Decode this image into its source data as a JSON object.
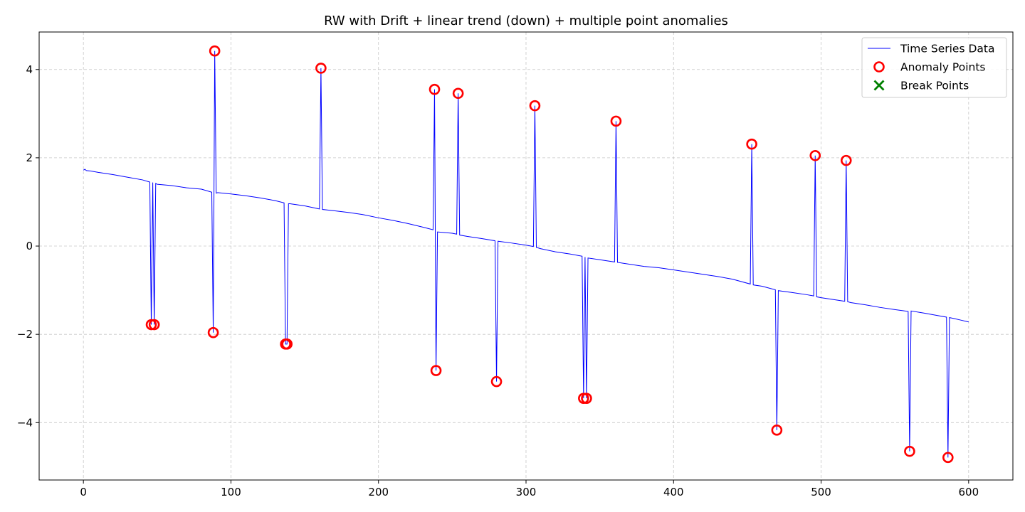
{
  "chart_data": {
    "type": "line",
    "title": "RW with Drift + linear trend (down) + multiple point anomalies",
    "xlabel": "",
    "ylabel": "",
    "xlim": [
      -30,
      630
    ],
    "ylim": [
      -5.3,
      4.85
    ],
    "xticks": [
      0,
      100,
      200,
      300,
      400,
      500,
      600
    ],
    "yticks": [
      -4,
      -2,
      0,
      2,
      4
    ],
    "grid": true,
    "legend": {
      "position": "top-right",
      "entries": [
        {
          "label": "Time Series Data",
          "marker": "line",
          "color": "#0000ff"
        },
        {
          "label": "Anomaly Points",
          "marker": "circle",
          "color": "#ff0000"
        },
        {
          "label": "Break Points",
          "marker": "x",
          "color": "#008000"
        }
      ]
    },
    "series": [
      {
        "name": "Time Series Data",
        "color": "#0000ff",
        "x": [
          0,
          1,
          2,
          5,
          10,
          20,
          30,
          40,
          45,
          46,
          47,
          48,
          49,
          50,
          60,
          70,
          80,
          87,
          88,
          89,
          90,
          91,
          100,
          110,
          120,
          130,
          136,
          137,
          138,
          139,
          140,
          150,
          160,
          161,
          162,
          170,
          180,
          190,
          200,
          210,
          220,
          230,
          237,
          238,
          239,
          240,
          250,
          253,
          254,
          255,
          260,
          270,
          279,
          280,
          281,
          290,
          300,
          305,
          306,
          307,
          310,
          320,
          330,
          338,
          339,
          340,
          341,
          342,
          350,
          360,
          361,
          362,
          370,
          380,
          390,
          400,
          410,
          420,
          430,
          440,
          452,
          453,
          454,
          460,
          469,
          470,
          471,
          480,
          490,
          495,
          496,
          497,
          500,
          510,
          516,
          517,
          518,
          520,
          530,
          540,
          550,
          559,
          560,
          561,
          570,
          580,
          585,
          586,
          587,
          590,
          595,
          600
        ],
        "y": [
          1.72,
          1.74,
          1.71,
          1.7,
          1.67,
          1.62,
          1.56,
          1.5,
          1.45,
          -1.78,
          1.44,
          -1.78,
          1.42,
          1.4,
          1.37,
          1.32,
          1.29,
          1.22,
          -1.96,
          4.42,
          1.2,
          1.21,
          1.18,
          1.14,
          1.09,
          1.03,
          0.98,
          -2.22,
          -2.22,
          0.96,
          0.96,
          0.91,
          0.84,
          4.03,
          0.83,
          0.8,
          0.76,
          0.71,
          0.64,
          0.58,
          0.51,
          0.43,
          0.37,
          3.55,
          -2.82,
          0.32,
          0.29,
          0.27,
          3.46,
          0.25,
          0.22,
          0.17,
          0.12,
          -3.07,
          0.11,
          0.07,
          0.02,
          -0.01,
          3.18,
          -0.03,
          -0.06,
          -0.13,
          -0.18,
          -0.23,
          -3.45,
          -0.25,
          -3.45,
          -0.27,
          -0.31,
          -0.36,
          2.83,
          -0.37,
          -0.41,
          -0.46,
          -0.49,
          -0.54,
          -0.59,
          -0.64,
          -0.69,
          -0.75,
          -0.86,
          2.31,
          -0.88,
          -0.91,
          -0.99,
          -4.17,
          -1.01,
          -1.05,
          -1.1,
          -1.13,
          2.05,
          -1.15,
          -1.17,
          -1.22,
          -1.25,
          1.94,
          -1.26,
          -1.28,
          -1.33,
          -1.39,
          -1.44,
          -1.48,
          -4.65,
          -1.47,
          -1.52,
          -1.58,
          -1.61,
          -4.79,
          -1.62,
          -1.64,
          -1.68,
          -1.72
        ]
      },
      {
        "name": "Anomaly Points",
        "color": "#ff0000",
        "x": [
          46,
          48,
          88,
          89,
          137,
          138,
          161,
          238,
          239,
          254,
          280,
          306,
          339,
          341,
          361,
          453,
          470,
          496,
          517,
          560,
          586
        ],
        "y": [
          -1.78,
          -1.78,
          -1.96,
          4.42,
          -2.22,
          -2.22,
          4.03,
          3.55,
          -2.82,
          3.46,
          -3.07,
          3.18,
          -3.45,
          -3.45,
          2.83,
          2.31,
          -4.17,
          2.05,
          1.94,
          -4.65,
          -4.79
        ]
      },
      {
        "name": "Break Points",
        "color": "#008000",
        "x": [],
        "y": []
      }
    ]
  }
}
